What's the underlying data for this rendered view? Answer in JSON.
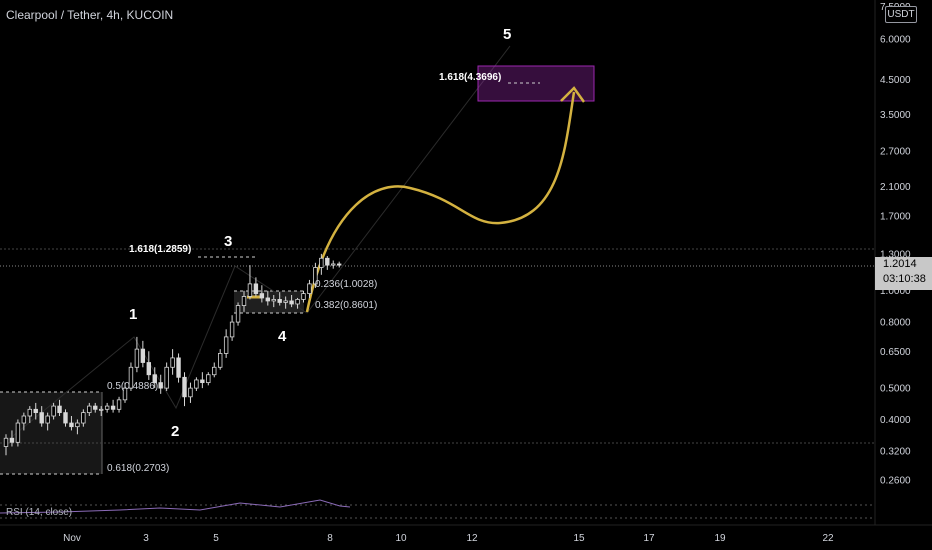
{
  "header": {
    "title": "Clearpool / Tether, 4h, KUCOIN",
    "currency_badge": "USDT"
  },
  "price_tag": {
    "price": "1.2014",
    "countdown": "03:10:38"
  },
  "rsi": {
    "label": "RSI (14, close)"
  },
  "colors": {
    "background": "#000000",
    "candle": "#d8d8d8",
    "wave_line": "#2b2b2b",
    "projection_arrow": "#d4b240",
    "target_box": "#9c27b0",
    "rsi_line": "#8b6bb8"
  },
  "chart_data": {
    "type": "candlestick",
    "title": "Clearpool / Tether, 4h, KUCOIN",
    "scale": "log",
    "ylim": [
      0.23,
      7.5
    ],
    "y_ticks": [
      6.0,
      4.5,
      3.5,
      2.7,
      2.1,
      1.7,
      1.3,
      1.0,
      0.8,
      0.65,
      0.5,
      0.4,
      0.32,
      0.26
    ],
    "y_tick_labels": [
      "6.0000",
      "4.5000",
      "3.5000",
      "2.7000",
      "2.1000",
      "1.7000",
      "1.3000",
      "1.0000",
      "0.8000",
      "0.6500",
      "0.5000",
      "0.4000",
      "0.3200",
      "0.2600"
    ],
    "top_partial_tick_label": "7.5000",
    "x_tick_labels": [
      "Nov",
      "3",
      "5",
      "8",
      "10",
      "12",
      "15",
      "17",
      "19",
      "22"
    ],
    "current_price": 1.2014,
    "wave_labels": [
      "1",
      "2",
      "3",
      "4",
      "5"
    ],
    "fib_levels": [
      {
        "label": "0.5(0.4886)",
        "value": 0.4886
      },
      {
        "label": "0.618(0.2703)",
        "value": 0.2703
      },
      {
        "label": "1.618(1.2859)",
        "value": 1.2859
      },
      {
        "label": "0.236(1.0028)",
        "value": 1.0028
      },
      {
        "label": "0.382(0.8601)",
        "value": 0.8601
      },
      {
        "label": "1.618(4.3696)",
        "value": 4.3696
      }
    ],
    "target_zone": [
      3.9,
      4.9
    ],
    "candles": [
      [
        0.33,
        0.36,
        0.31,
        0.35
      ],
      [
        0.35,
        0.37,
        0.33,
        0.34
      ],
      [
        0.34,
        0.4,
        0.33,
        0.39
      ],
      [
        0.39,
        0.42,
        0.37,
        0.41
      ],
      [
        0.41,
        0.44,
        0.39,
        0.43
      ],
      [
        0.43,
        0.45,
        0.4,
        0.42
      ],
      [
        0.42,
        0.44,
        0.38,
        0.39
      ],
      [
        0.39,
        0.42,
        0.37,
        0.41
      ],
      [
        0.41,
        0.45,
        0.4,
        0.44
      ],
      [
        0.44,
        0.46,
        0.41,
        0.42
      ],
      [
        0.42,
        0.43,
        0.38,
        0.39
      ],
      [
        0.39,
        0.41,
        0.37,
        0.38
      ],
      [
        0.38,
        0.4,
        0.36,
        0.39
      ],
      [
        0.39,
        0.43,
        0.38,
        0.42
      ],
      [
        0.42,
        0.45,
        0.41,
        0.44
      ],
      [
        0.44,
        0.45,
        0.42,
        0.43
      ],
      [
        0.43,
        0.44,
        0.41,
        0.43
      ],
      [
        0.43,
        0.45,
        0.42,
        0.44
      ],
      [
        0.44,
        0.46,
        0.42,
        0.43
      ],
      [
        0.43,
        0.47,
        0.42,
        0.46
      ],
      [
        0.46,
        0.52,
        0.45,
        0.5
      ],
      [
        0.5,
        0.6,
        0.49,
        0.58
      ],
      [
        0.58,
        0.72,
        0.56,
        0.66
      ],
      [
        0.66,
        0.7,
        0.58,
        0.6
      ],
      [
        0.6,
        0.65,
        0.53,
        0.55
      ],
      [
        0.55,
        0.58,
        0.5,
        0.52
      ],
      [
        0.52,
        0.55,
        0.48,
        0.5
      ],
      [
        0.5,
        0.6,
        0.49,
        0.58
      ],
      [
        0.58,
        0.66,
        0.55,
        0.62
      ],
      [
        0.62,
        0.64,
        0.52,
        0.54
      ],
      [
        0.54,
        0.56,
        0.44,
        0.47
      ],
      [
        0.47,
        0.52,
        0.45,
        0.5
      ],
      [
        0.5,
        0.54,
        0.49,
        0.53
      ],
      [
        0.53,
        0.56,
        0.5,
        0.52
      ],
      [
        0.52,
        0.56,
        0.51,
        0.55
      ],
      [
        0.55,
        0.6,
        0.54,
        0.58
      ],
      [
        0.58,
        0.66,
        0.57,
        0.64
      ],
      [
        0.64,
        0.76,
        0.62,
        0.72
      ],
      [
        0.72,
        0.84,
        0.7,
        0.8
      ],
      [
        0.8,
        0.92,
        0.78,
        0.9
      ],
      [
        0.9,
        1.0,
        0.86,
        0.96
      ],
      [
        0.96,
        1.2,
        0.94,
        1.05
      ],
      [
        1.05,
        1.1,
        0.96,
        0.98
      ],
      [
        0.98,
        1.04,
        0.92,
        0.95
      ],
      [
        0.95,
        1.0,
        0.9,
        0.93
      ],
      [
        0.93,
        0.97,
        0.89,
        0.94
      ],
      [
        0.94,
        0.99,
        0.9,
        0.92
      ],
      [
        0.92,
        0.96,
        0.88,
        0.93
      ],
      [
        0.93,
        0.97,
        0.89,
        0.91
      ],
      [
        0.91,
        0.95,
        0.88,
        0.94
      ],
      [
        0.94,
        1.0,
        0.92,
        0.98
      ],
      [
        0.98,
        1.08,
        0.95,
        1.05
      ],
      [
        1.05,
        1.22,
        1.02,
        1.18
      ],
      [
        1.18,
        1.3,
        1.12,
        1.26
      ],
      [
        1.26,
        1.28,
        1.16,
        1.2
      ],
      [
        1.2,
        1.24,
        1.17,
        1.21
      ],
      [
        1.21,
        1.23,
        1.18,
        1.2
      ]
    ]
  }
}
